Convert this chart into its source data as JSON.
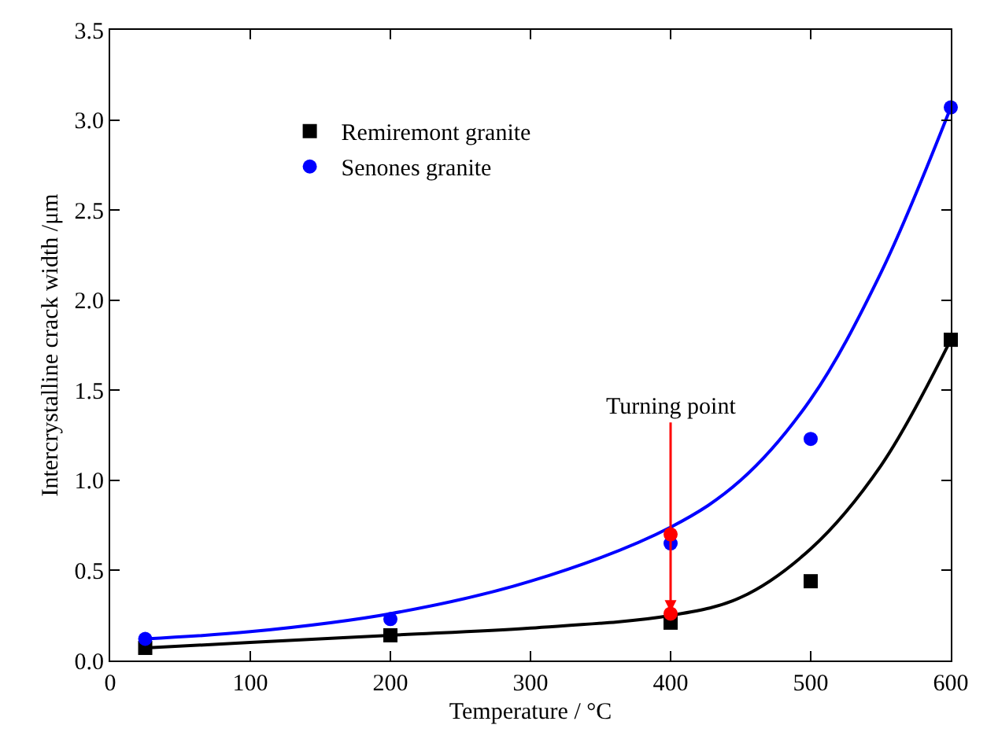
{
  "chart_data": {
    "type": "scatter",
    "xlabel": "Temperature / °C",
    "ylabel": "Intercrystalline crack width /μm",
    "x": [
      25,
      200,
      400,
      500,
      600
    ],
    "series": [
      {
        "name": "Remiremont granite",
        "color": "#000000",
        "marker": "square",
        "values": [
          0.07,
          0.14,
          0.21,
          0.44,
          1.78
        ]
      },
      {
        "name": "Senones granite",
        "color": "#0000ff",
        "marker": "circle",
        "values": [
          0.12,
          0.23,
          0.65,
          1.23,
          3.07
        ]
      },
      {
        "type": "line",
        "color": "#000000",
        "marker": "none",
        "x": [
          25,
          100,
          200,
          300,
          400,
          450,
          500,
          550,
          600
        ],
        "values": [
          0.07,
          0.1,
          0.14,
          0.18,
          0.25,
          0.35,
          0.62,
          1.08,
          1.78
        ]
      },
      {
        "type": "line",
        "color": "#0000ff",
        "marker": "none",
        "x": [
          25,
          100,
          200,
          300,
          400,
          450,
          500,
          550,
          600
        ],
        "values": [
          0.12,
          0.16,
          0.26,
          0.44,
          0.74,
          1.0,
          1.45,
          2.15,
          3.07
        ]
      },
      {
        "color": "#ff0000",
        "marker": "circle",
        "x": [
          400,
          400
        ],
        "values": [
          0.7,
          0.26
        ]
      }
    ],
    "annotations": [
      {
        "text": "Turning point",
        "x": 400,
        "y": 0.27
      }
    ],
    "xlim": [
      0,
      600
    ],
    "xticks": [
      0,
      100,
      200,
      300,
      400,
      500,
      600
    ],
    "ylim": [
      0,
      3.5
    ],
    "yticks": [
      {
        "value": 0,
        "label": "0.0"
      },
      {
        "value": 0.5,
        "label": "0.5"
      },
      {
        "value": 1,
        "label": "1.0"
      },
      {
        "value": 1.5,
        "label": "1.5"
      },
      {
        "value": 2,
        "label": "2.0"
      },
      {
        "value": 2.5,
        "label": "2.5"
      },
      {
        "value": 3,
        "label": "3.0"
      },
      {
        "value": 3.5,
        "label": "3.5"
      }
    ],
    "grid": false,
    "legend": "top left"
  }
}
